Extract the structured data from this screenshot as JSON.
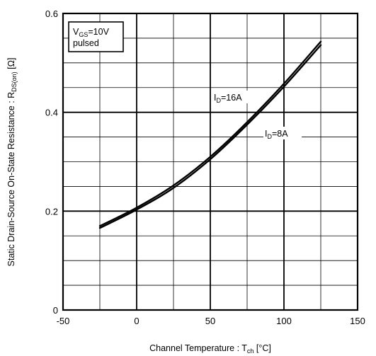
{
  "chart_data": {
    "type": "line",
    "xlabel_main": "Channel Temperature :  T",
    "xlabel_sub": "ch",
    "xlabel_unit": " [°C]",
    "ylabel_main": "Static Drain-Source On-State Resistance : R",
    "ylabel_sub": "DS(on)",
    "ylabel_unit": " [Ω]",
    "xlim": [
      -50,
      150
    ],
    "ylim": [
      0,
      0.6
    ],
    "x_ticks": [
      -50,
      0,
      50,
      100,
      150
    ],
    "x_tick_labels": [
      "-50",
      "0",
      "50",
      "100",
      "150"
    ],
    "y_ticks": [
      0,
      0.2,
      0.4,
      0.6
    ],
    "y_tick_labels": [
      "0",
      "0.2",
      "0.4",
      "0.6"
    ],
    "x_minor_step": 25,
    "y_minor_step": 0.05,
    "grid": true,
    "condition": {
      "line1_main": "V",
      "line1_sub": "GS",
      "line1_rest": "=10V",
      "line2": "pulsed"
    },
    "series": [
      {
        "name_main": "I",
        "name_sub": "D",
        "name_rest": "=16A",
        "x": [
          -25,
          0,
          25,
          50,
          75,
          100,
          125
        ],
        "y": [
          0.17,
          0.207,
          0.252,
          0.31,
          0.38,
          0.458,
          0.543
        ]
      },
      {
        "name_main": "I",
        "name_sub": "D",
        "name_rest": "=8A",
        "x": [
          -25,
          0,
          25,
          50,
          75,
          100,
          125
        ],
        "y": [
          0.166,
          0.203,
          0.247,
          0.305,
          0.375,
          0.452,
          0.536
        ]
      }
    ]
  }
}
